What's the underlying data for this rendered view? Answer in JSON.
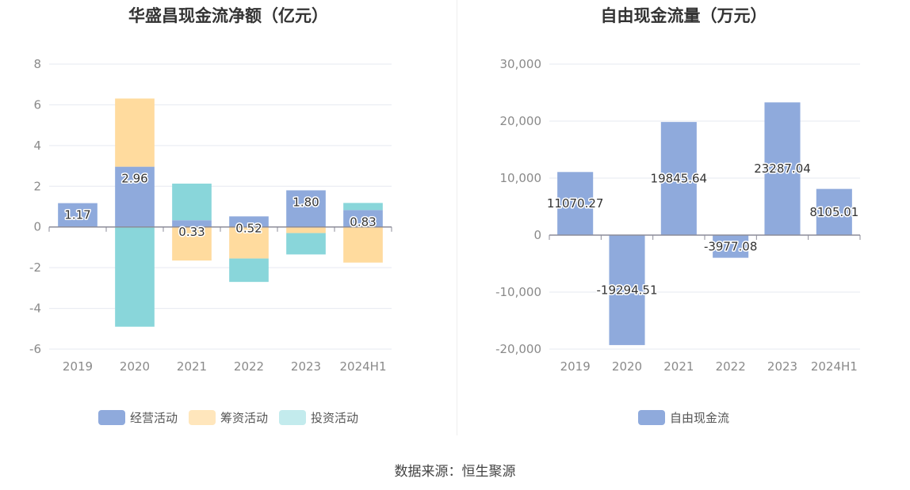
{
  "chart_data": [
    {
      "type": "bar",
      "stacked": true,
      "title": "华盛昌现金流净额（亿元）",
      "categories": [
        "2019",
        "2020",
        "2021",
        "2022",
        "2023",
        "2024H1"
      ],
      "series": [
        {
          "name": "经营活动",
          "color": "#8faadc",
          "values": [
            1.17,
            2.96,
            0.33,
            0.52,
            1.8,
            0.83
          ],
          "labels": [
            "1.17",
            "2.96",
            "0.33",
            "0.52",
            "1.80",
            "0.83"
          ]
        },
        {
          "name": "筹资活动",
          "color": "#ffdb9e",
          "values": [
            -0.02,
            3.35,
            -1.65,
            -1.55,
            -0.3,
            -1.75
          ]
        },
        {
          "name": "投资活动",
          "color": "#89d6da",
          "values": [
            0.0,
            -4.9,
            1.8,
            -1.15,
            -1.05,
            0.35
          ]
        }
      ],
      "ylim": [
        -6,
        8
      ],
      "yticks": [
        "8",
        "6",
        "4",
        "2",
        "0",
        "-2",
        "-4",
        "-6"
      ],
      "ytick_values": [
        8,
        6,
        4,
        2,
        0,
        -2,
        -4,
        -6
      ],
      "grid": true,
      "legend": "bottom"
    },
    {
      "type": "bar",
      "title": "自由现金流量（万元）",
      "categories": [
        "2019",
        "2020",
        "2021",
        "2022",
        "2023",
        "2024H1"
      ],
      "series": [
        {
          "name": "自由现金流",
          "color": "#8faadc",
          "values": [
            11070.27,
            -19294.51,
            19845.64,
            -3977.08,
            23287.04,
            8105.01
          ],
          "labels": [
            "11070.27",
            "-19294.51",
            "19845.64",
            "-3977.08",
            "23287.04",
            "8105.01"
          ]
        }
      ],
      "ylim": [
        -20000,
        30000
      ],
      "yticks": [
        "30,000",
        "20,000",
        "10,000",
        "0",
        "-10,000",
        "-20,000"
      ],
      "ytick_values": [
        30000,
        20000,
        10000,
        0,
        -10000,
        -20000
      ],
      "grid": true,
      "legend": "bottom"
    }
  ],
  "source": "数据来源：恒生聚源"
}
